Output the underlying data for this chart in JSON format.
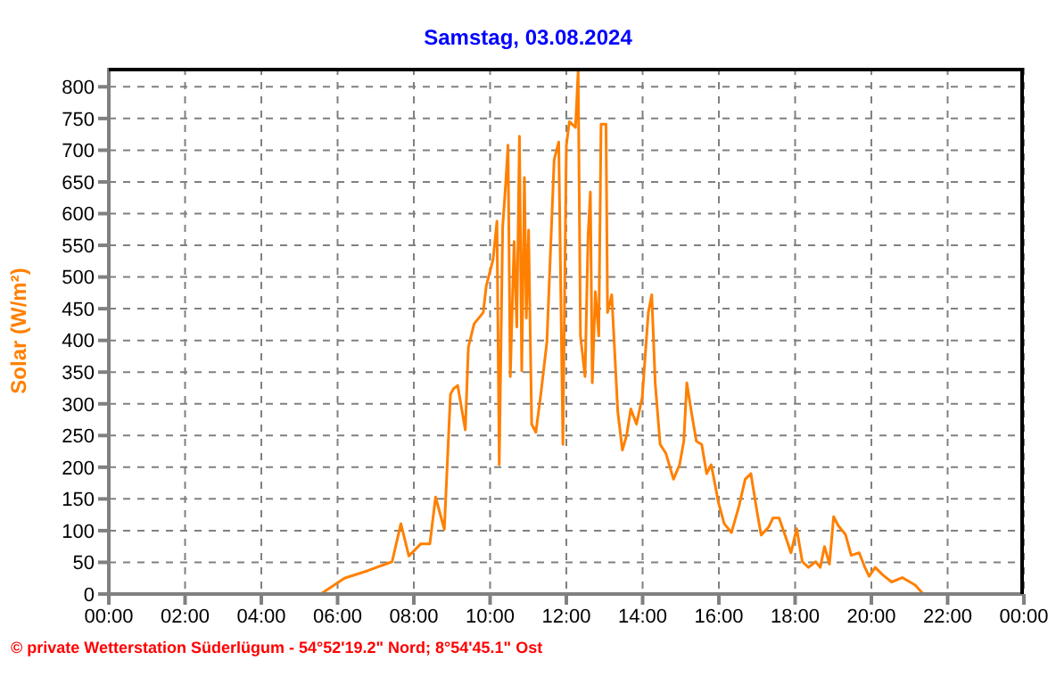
{
  "chart_data": {
    "type": "line",
    "title": "Samstag, 03.08.2024",
    "ylabel": "Solar (W/m²)",
    "annotations": [
      "© private Wetterstation Süderlügum - 54°52'19.2\" Nord; 8°54'45.1\" Ost"
    ],
    "xlim": [
      0,
      24
    ],
    "xticks": [
      {
        "value": 0,
        "label": "00:00"
      },
      {
        "value": 2,
        "label": "02:00"
      },
      {
        "value": 4,
        "label": "04:00"
      },
      {
        "value": 6,
        "label": "06:00"
      },
      {
        "value": 8,
        "label": "08:00"
      },
      {
        "value": 10,
        "label": "10:00"
      },
      {
        "value": 12,
        "label": "12:00"
      },
      {
        "value": 14,
        "label": "14:00"
      },
      {
        "value": 16,
        "label": "16:00"
      },
      {
        "value": 18,
        "label": "18:00"
      },
      {
        "value": 20,
        "label": "20:00"
      },
      {
        "value": 22,
        "label": "22:00"
      },
      {
        "value": 24,
        "label": "00:00"
      }
    ],
    "ylim": [
      0,
      830
    ],
    "yticks": [
      0,
      50,
      100,
      150,
      200,
      250,
      300,
      350,
      400,
      450,
      500,
      550,
      600,
      650,
      700,
      750,
      800
    ],
    "grid": true,
    "marker": "none",
    "line_style": "solid",
    "series": [
      {
        "color": "#ff8000",
        "x": [
          0,
          5.56,
          6.18,
          6.8,
          7.43,
          7.66,
          7.87,
          8.18,
          8.42,
          8.57,
          8.8,
          8.96,
          9.04,
          9.15,
          9.35,
          9.43,
          9.58,
          9.82,
          9.9,
          10.08,
          10.18,
          10.24,
          10.33,
          10.41,
          10.47,
          10.53,
          10.63,
          10.7,
          10.77,
          10.83,
          10.9,
          10.95,
          11.01,
          11.09,
          11.2,
          11.33,
          11.49,
          11.57,
          11.68,
          11.8,
          11.91,
          12.0,
          12.08,
          12.24,
          12.31,
          12.37,
          12.49,
          12.57,
          12.63,
          12.68,
          12.76,
          12.85,
          12.91,
          13.04,
          13.08,
          13.19,
          13.35,
          13.47,
          13.58,
          13.69,
          13.84,
          13.99,
          14.15,
          14.24,
          14.33,
          14.46,
          14.61,
          14.81,
          14.97,
          15.08,
          15.16,
          15.28,
          15.41,
          15.55,
          15.68,
          15.8,
          15.99,
          16.14,
          16.33,
          16.53,
          16.69,
          16.84,
          17.0,
          17.11,
          17.31,
          17.42,
          17.58,
          17.73,
          17.89,
          18.04,
          18.19,
          18.35,
          18.54,
          18.66,
          18.77,
          18.9,
          19.01,
          19.13,
          19.32,
          19.47,
          19.68,
          19.83,
          19.94,
          20.1,
          20.3,
          20.53,
          20.81,
          21.15,
          21.36
        ],
        "values": [
          0,
          0,
          25,
          37,
          51,
          111,
          60,
          79,
          79,
          153,
          102,
          315,
          324,
          329,
          259,
          389,
          426,
          444,
          486,
          528,
          588,
          204,
          579,
          648,
          708,
          343,
          556,
          421,
          722,
          352,
          657,
          435,
          574,
          268,
          255,
          315,
          398,
          519,
          685,
          713,
          236,
          708,
          745,
          736,
          825,
          407,
          343,
          565,
          634,
          333,
          477,
          407,
          741,
          741,
          444,
          472,
          287,
          227,
          250,
          292,
          268,
          310,
          444,
          472,
          333,
          236,
          222,
          181,
          204,
          241,
          333,
          287,
          241,
          236,
          190,
          204,
          144,
          111,
          97,
          139,
          181,
          190,
          130,
          93,
          106,
          120,
          120,
          94,
          65,
          103,
          51,
          42,
          51,
          42,
          75,
          47,
          122,
          108,
          94,
          61,
          65,
          42,
          28,
          42,
          30,
          19,
          26,
          14,
          0
        ]
      }
    ]
  }
}
